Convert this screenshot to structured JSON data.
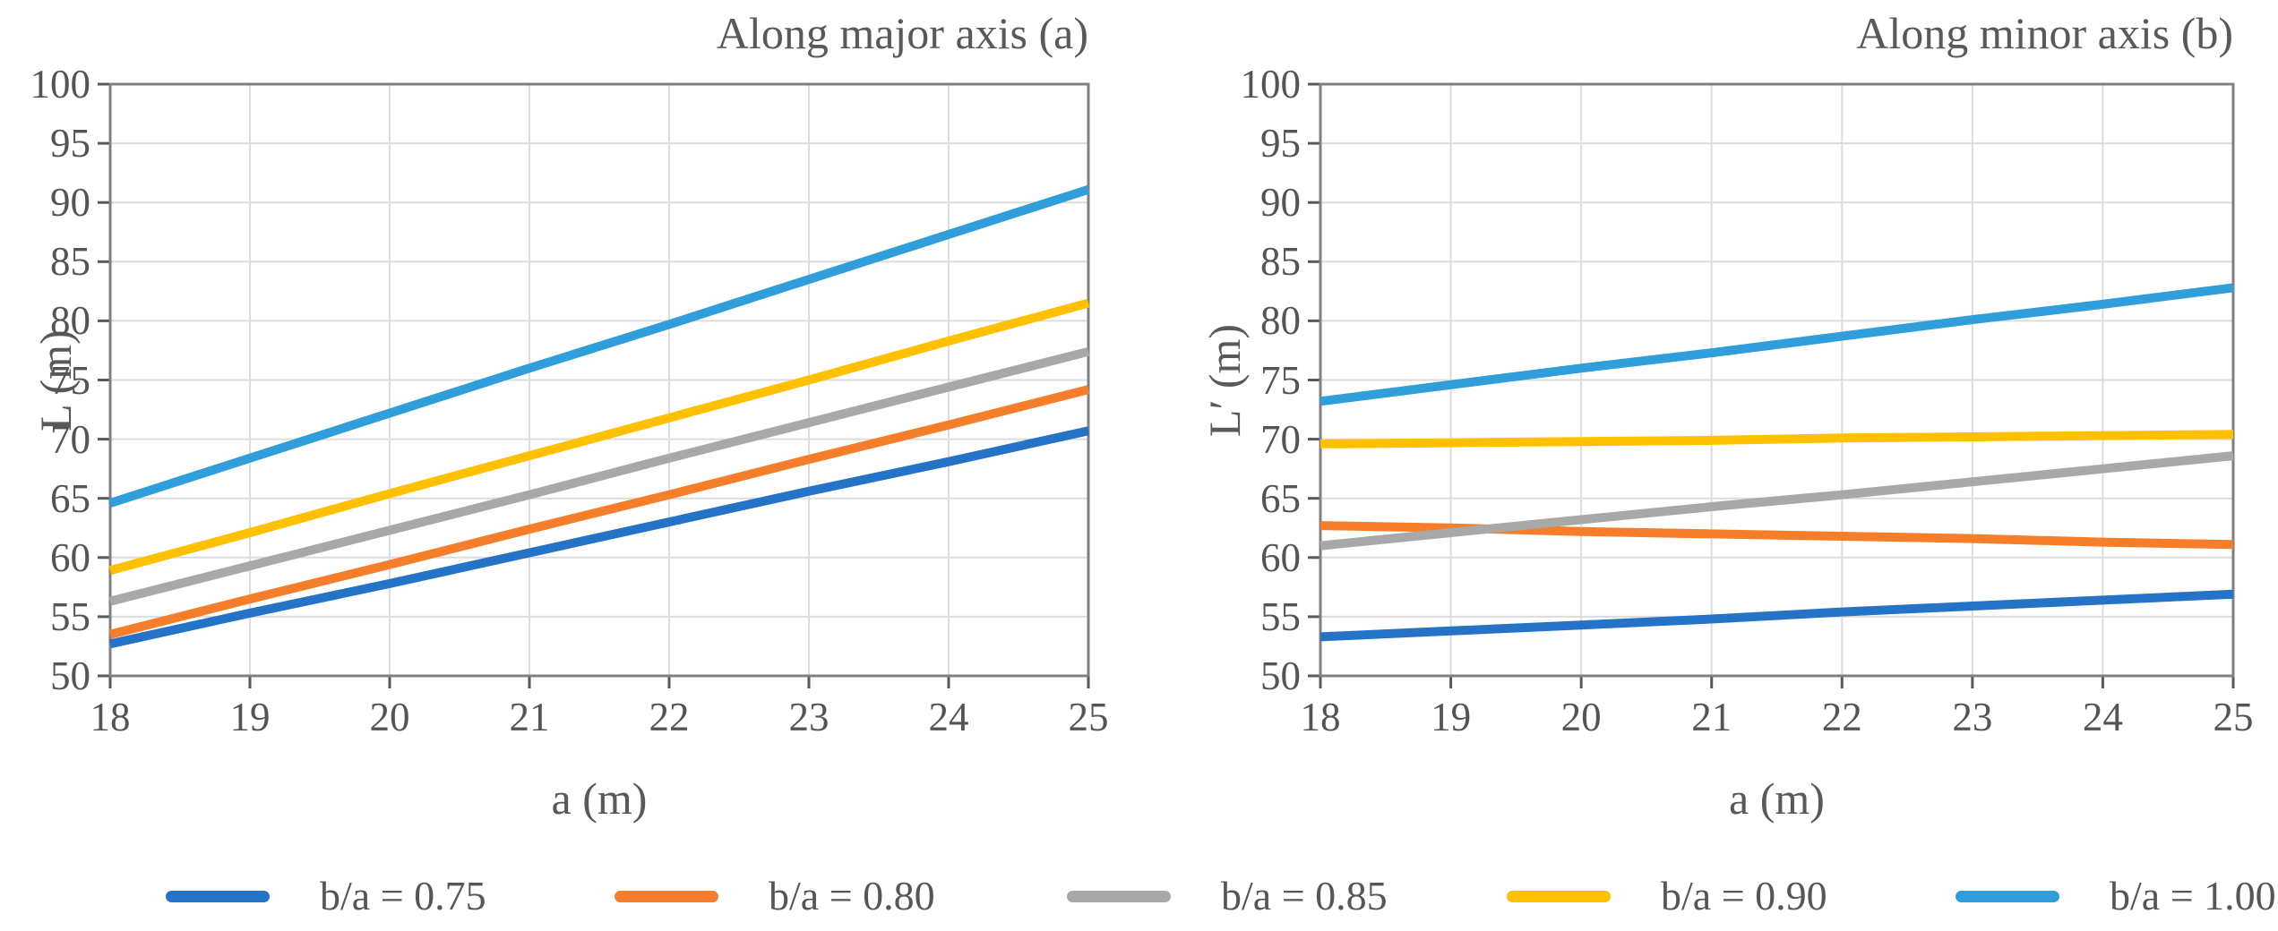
{
  "figure": {
    "background": "#FFFFFF",
    "text_color": "#595959",
    "grid_color": "#DCDCDC",
    "axis_color": "#595959",
    "border_color": "#808080"
  },
  "legend": {
    "items": [
      {
        "label": "b/a = 0.75",
        "color": "#2573C6"
      },
      {
        "label": "b/a = 0.80",
        "color": "#F67D29"
      },
      {
        "label": "b/a = 0.85",
        "color": "#A8A8A8"
      },
      {
        "label": "b/a = 0.90",
        "color": "#FFC000"
      },
      {
        "label": "b/a = 1.00",
        "color": "#2F9EDB"
      }
    ]
  },
  "chart_data": [
    {
      "type": "line",
      "title": "Along major axis (a)",
      "xlabel": "a (m)",
      "ylabel": "L (m)",
      "x": [
        18,
        19,
        20,
        21,
        22,
        23,
        24,
        25
      ],
      "xlim": [
        18,
        25
      ],
      "ylim": [
        50,
        100
      ],
      "y_ticks": [
        50,
        55,
        60,
        65,
        70,
        75,
        80,
        85,
        90,
        95,
        100
      ],
      "grid": true,
      "legend_position": "bottom",
      "series": [
        {
          "name": "b/a = 0.75",
          "color": "#2573C6",
          "values": [
            52.7,
            55.3,
            57.8,
            60.4,
            63.0,
            65.6,
            68.1,
            70.7
          ]
        },
        {
          "name": "b/a = 0.80",
          "color": "#F67D29",
          "values": [
            53.5,
            56.5,
            59.4,
            62.4,
            65.3,
            68.3,
            71.2,
            74.2
          ]
        },
        {
          "name": "b/a = 0.85",
          "color": "#A8A8A8",
          "values": [
            56.3,
            59.3,
            62.3,
            65.3,
            68.4,
            71.4,
            74.4,
            77.4
          ]
        },
        {
          "name": "b/a = 0.90",
          "color": "#FFC000",
          "values": [
            58.9,
            62.1,
            65.4,
            68.6,
            71.8,
            75.0,
            78.3,
            81.5
          ]
        },
        {
          "name": "b/a = 1.00",
          "color": "#2F9EDB",
          "values": [
            64.6,
            68.4,
            72.2,
            76.0,
            79.7,
            83.5,
            87.3,
            91.1
          ]
        }
      ]
    },
    {
      "type": "line",
      "title": "Along minor axis (b)",
      "xlabel": "a (m)",
      "ylabel": "L′ (m)",
      "x": [
        18,
        19,
        20,
        21,
        22,
        23,
        24,
        25
      ],
      "xlim": [
        18,
        25
      ],
      "ylim": [
        50,
        100
      ],
      "y_ticks": [
        50,
        55,
        60,
        65,
        70,
        75,
        80,
        85,
        90,
        95,
        100
      ],
      "grid": true,
      "legend_position": "bottom",
      "series": [
        {
          "name": "b/a = 0.75",
          "color": "#2573C6",
          "values": [
            53.3,
            53.8,
            54.3,
            54.8,
            55.4,
            55.9,
            56.4,
            56.9
          ]
        },
        {
          "name": "b/a = 0.80",
          "color": "#F67D29",
          "values": [
            62.7,
            62.5,
            62.2,
            62.0,
            61.8,
            61.6,
            61.3,
            61.1
          ]
        },
        {
          "name": "b/a = 0.85",
          "color": "#A8A8A8",
          "values": [
            61.0,
            62.1,
            63.2,
            64.3,
            65.3,
            66.4,
            67.5,
            68.6
          ]
        },
        {
          "name": "b/a = 0.90",
          "color": "#FFC000",
          "values": [
            69.6,
            69.7,
            69.8,
            69.9,
            70.1,
            70.2,
            70.3,
            70.4
          ]
        },
        {
          "name": "b/a = 1.00",
          "color": "#2F9EDB",
          "values": [
            73.2,
            74.6,
            76.0,
            77.3,
            78.7,
            80.1,
            81.4,
            82.8
          ]
        }
      ]
    }
  ]
}
